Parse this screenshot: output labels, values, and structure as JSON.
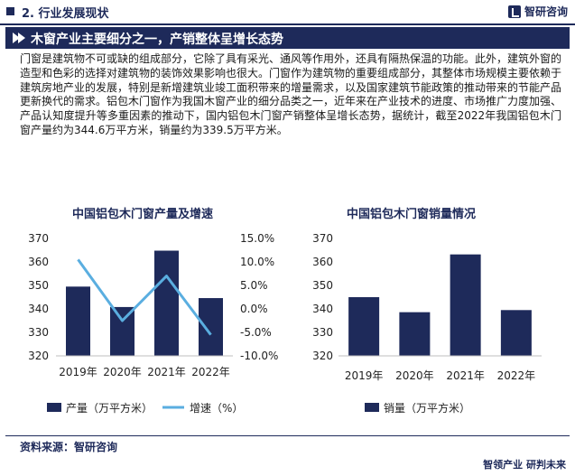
{
  "header": {
    "section_label": "2. 行业发展现状",
    "brand_name": "智研咨询"
  },
  "banner": {
    "title": "木窗产业主要细分之一，产销整体呈增长态势"
  },
  "paragraph": "门窗是建筑物不可或缺的组成部分，它除了具有采光、通风等作用外，还具有隔热保温的功能。此外，建筑外窗的造型和色彩的选择对建筑物的装饰效果影响也很大。门窗作为建筑物的重要组成部分，其整体市场规模主要依赖于建筑房地产业的发展，特别是新增建筑业竣工面积带来的增量需求，以及国家建筑节能政策的推动带来的节能产品更新换代的需求。铝包木门窗作为我国木窗产业的细分品类之一，近年来在产业技术的进度、市场推广力度加强、产品认知度提升等多重因素的推动下，国内铝包木门窗产销整体呈增长态势，据统计，截至2022年我国铝包木门窗产量约为344.6万平方米，销量约为339.5万平方米。",
  "footer": {
    "source": "资料来源：智研咨询",
    "slogan": "智领产业  研判未来"
  },
  "colors": {
    "navy": "#1e2a5a",
    "line_blue": "#5aaee0"
  },
  "chart_data": [
    {
      "type": "bar",
      "title": "中国铝包木门窗产量及增速",
      "categories": [
        "2019年",
        "2020年",
        "2021年",
        "2022年"
      ],
      "series": [
        {
          "name": "产量（万平方米）",
          "type": "bar",
          "axis": "left",
          "values": [
            349.5,
            340.8,
            364.8,
            344.6
          ]
        },
        {
          "name": "增速（%）",
          "type": "line",
          "axis": "right",
          "values": [
            10.5,
            -2.5,
            7.0,
            -5.5
          ]
        }
      ],
      "ylim": [
        320,
        370
      ],
      "yticks": [
        320,
        330,
        340,
        350,
        360,
        370
      ],
      "y2lim": [
        -10,
        15
      ],
      "y2ticks": [
        "-10.0%",
        "-5.0%",
        "0.0%",
        "5.0%",
        "10.0%",
        "15.0%"
      ],
      "legend_position": "bottom"
    },
    {
      "type": "bar",
      "title": "中国铝包木门窗销量情况",
      "categories": [
        "2019年",
        "2020年",
        "2021年",
        "2022年"
      ],
      "series": [
        {
          "name": "销量（万平方米）",
          "values": [
            345.0,
            338.6,
            363.2,
            339.5
          ]
        }
      ],
      "ylim": [
        320,
        370
      ],
      "yticks": [
        320,
        330,
        340,
        350,
        360,
        370
      ],
      "legend_position": "bottom"
    }
  ]
}
